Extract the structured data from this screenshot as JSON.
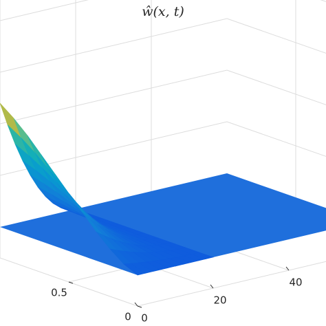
{
  "chart_data": {
    "type": "surface",
    "title": "ŵ(x, t)",
    "x": [
      0,
      0.1,
      0.2,
      0.3,
      0.4,
      0.5,
      0.6,
      0.7,
      0.8,
      0.9,
      1.0
    ],
    "values": [
      0,
      0.03,
      0.08,
      0.14,
      0.21,
      0.28,
      0.35,
      0.42,
      0.49,
      0.55,
      0.6
    ],
    "plane_color": "#1f6fdc",
    "xlim": [
      0,
      1
    ],
    "ylim": [
      0,
      60
    ],
    "zlim": [
      -0.15,
      1.2
    ],
    "xticks": [
      0,
      0.5
    ],
    "yticks": [
      0,
      20,
      40
    ],
    "grid": true
  }
}
